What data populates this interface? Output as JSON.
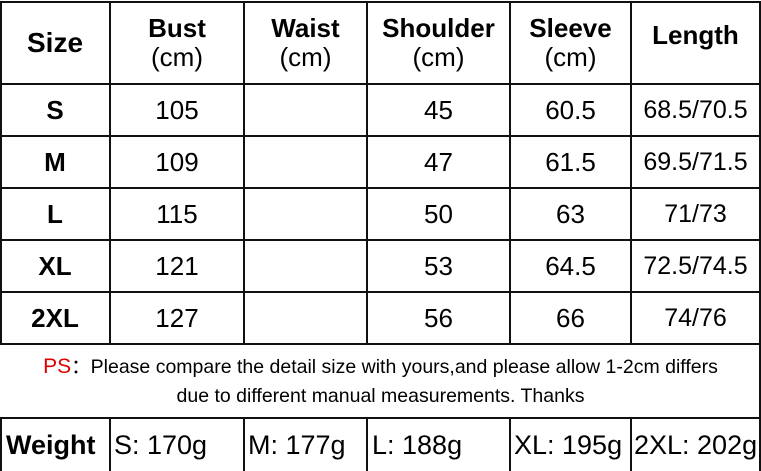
{
  "header": {
    "size": "Size",
    "columns": [
      {
        "label": "Bust",
        "unit": "(cm)"
      },
      {
        "label": "Waist",
        "unit": "(cm)"
      },
      {
        "label": "Shoulder",
        "unit": "(cm)"
      },
      {
        "label": "Sleeve",
        "unit": "(cm)"
      },
      {
        "label": "Length",
        "unit": ""
      }
    ]
  },
  "rows": [
    {
      "size": "S",
      "bust": "105",
      "waist": "",
      "shoulder": "45",
      "sleeve": "60.5",
      "length": "68.5/70.5"
    },
    {
      "size": "M",
      "bust": "109",
      "waist": "",
      "shoulder": "47",
      "sleeve": "61.5",
      "length": "69.5/71.5"
    },
    {
      "size": "L",
      "bust": "115",
      "waist": "",
      "shoulder": "50",
      "sleeve": "63",
      "length": "71/73"
    },
    {
      "size": "XL",
      "bust": "121",
      "waist": "",
      "shoulder": "53",
      "sleeve": "64.5",
      "length": "72.5/74.5"
    },
    {
      "size": "2XL",
      "bust": "127",
      "waist": "",
      "shoulder": "56",
      "sleeve": "66",
      "length": "74/76"
    }
  ],
  "note": {
    "prefix": "PS",
    "colon": "：",
    "line1": "Please compare the detail size with yours,and please allow 1-2cm differs",
    "line2": "due to different manual measurements. Thanks",
    "prefix_color": "#e00000"
  },
  "weight": {
    "label": "Weight",
    "values": [
      "S: 170g",
      "M: 177g",
      "L: 188g",
      "XL: 195g",
      "2XL: 202g"
    ]
  }
}
